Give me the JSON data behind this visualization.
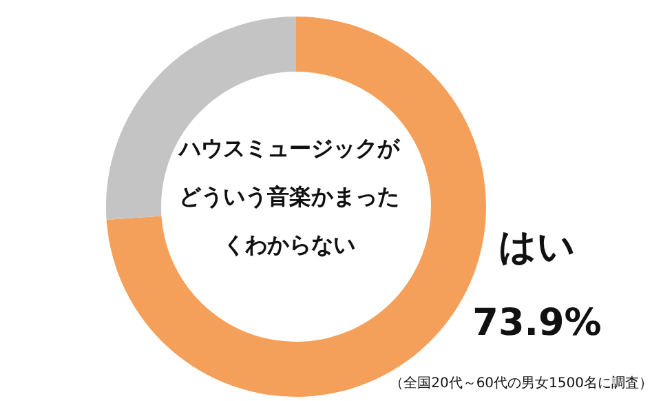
{
  "chart_data": {
    "type": "donut",
    "title": "ハウスミュージックがどういう音楽かまったくわからない",
    "categories": [
      "はい",
      null
    ],
    "values": [
      73.9,
      26.1
    ],
    "colors": [
      "#f5a05a",
      "#c4c4c4"
    ],
    "value_labels": [
      "73.9%",
      null
    ],
    "annotations": [
      "（全国20代～60代の男女1500名に調査）"
    ]
  }
}
